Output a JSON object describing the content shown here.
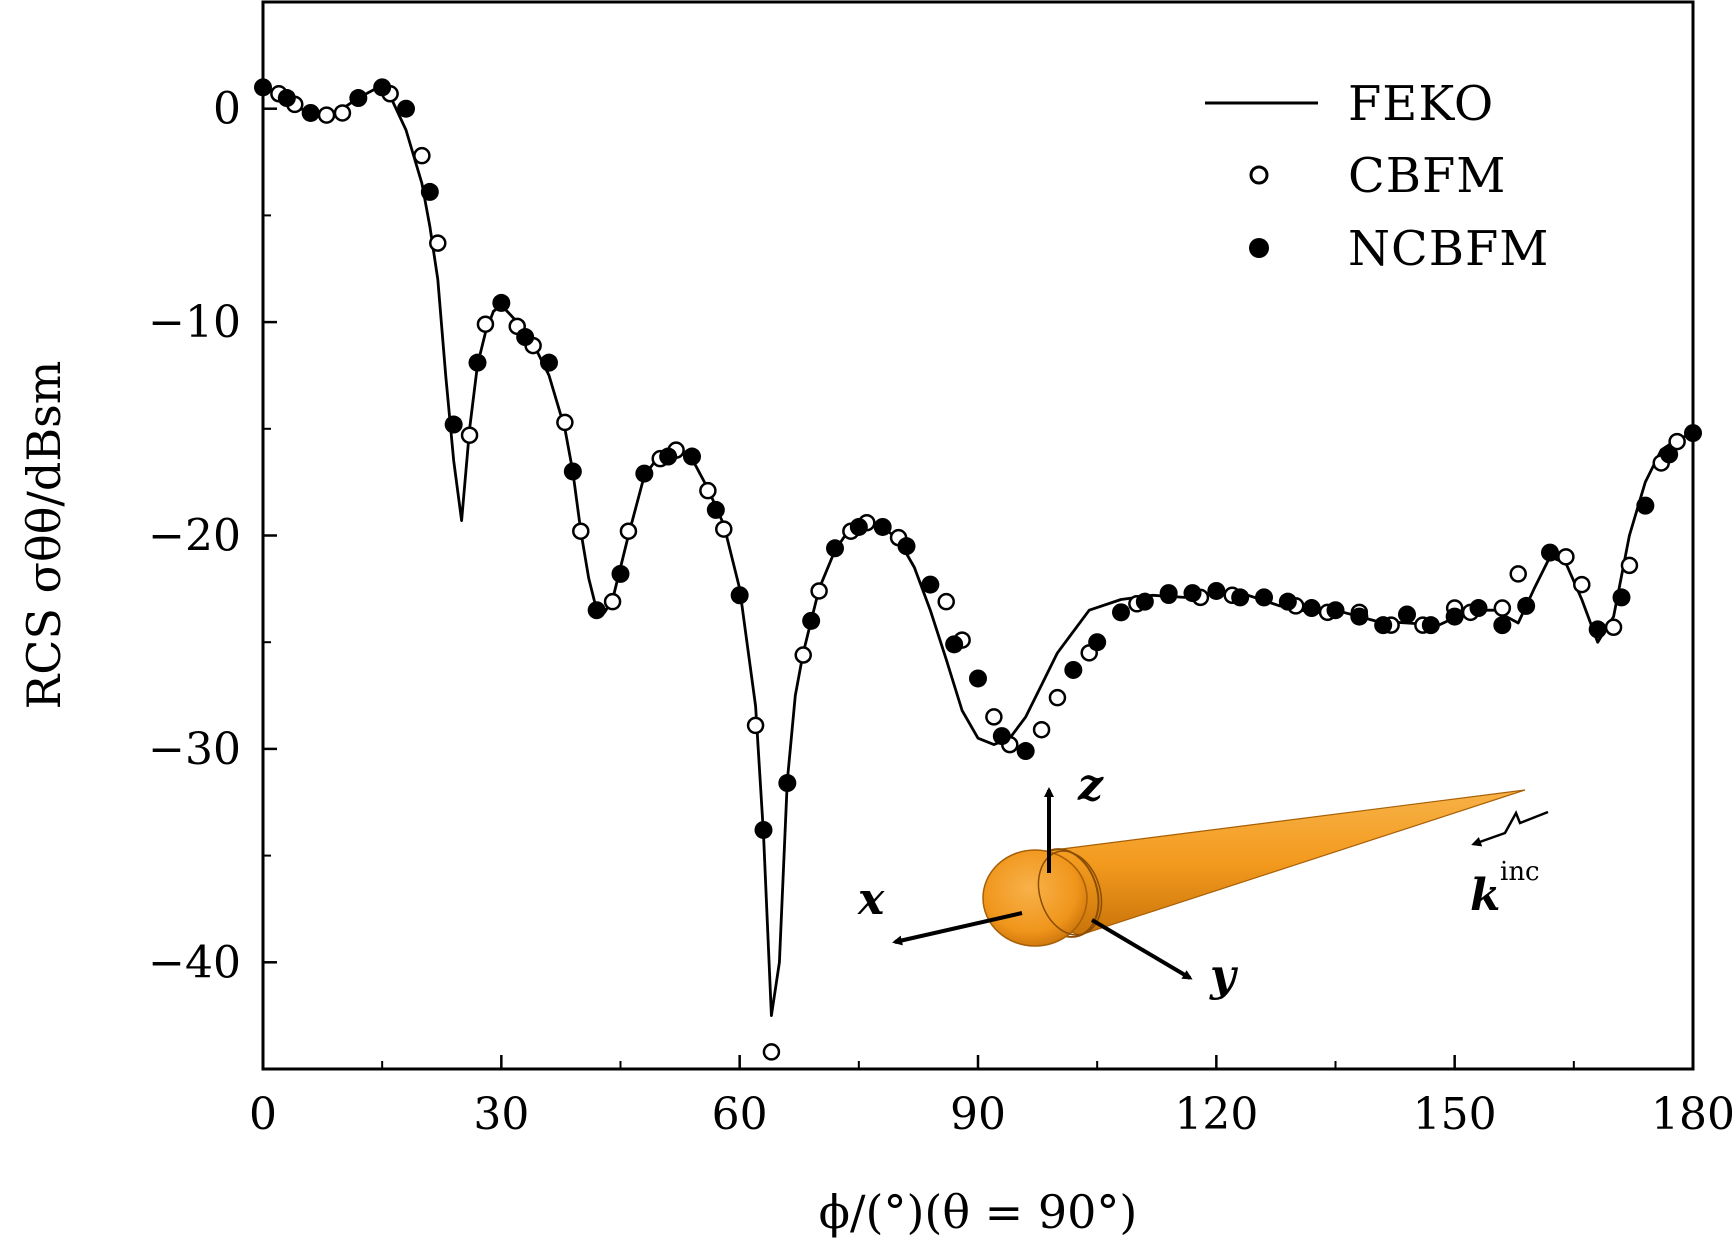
{
  "chart_data": {
    "type": "line",
    "xlabel": "ϕ/(°)(θ = 90°)",
    "ylabel": "RCS σθθ/dBsm",
    "xlim": [
      0,
      180
    ],
    "ylim": [
      -45,
      5
    ],
    "x_ticks": [
      0,
      30,
      60,
      90,
      120,
      150,
      180
    ],
    "x_tick_labels": [
      "0",
      "30",
      "60",
      "90",
      "120",
      "150",
      "180"
    ],
    "y_ticks": [
      0,
      -10,
      -20,
      -30,
      -40
    ],
    "y_tick_labels": [
      "0",
      "−10",
      "−20",
      "−30",
      "−40"
    ],
    "grid": false,
    "legend_position": "top-right",
    "series": [
      {
        "name": "FEKO",
        "style": "line",
        "color": "#000000",
        "x": [
          0,
          2,
          4,
          6,
          8,
          10,
          12,
          14,
          15,
          16,
          18,
          20,
          21,
          22,
          23,
          24,
          25,
          26,
          27,
          28,
          29,
          30,
          32,
          34,
          36,
          38,
          39,
          40,
          41,
          42,
          43,
          44,
          46,
          48,
          50,
          52,
          54,
          56,
          58,
          60,
          62,
          63,
          64,
          65,
          66,
          67,
          68,
          70,
          72,
          74,
          76,
          78,
          80,
          82,
          84,
          86,
          88,
          90,
          92,
          94,
          96,
          98,
          100,
          104,
          108,
          112,
          116,
          120,
          124,
          128,
          132,
          136,
          140,
          144,
          148,
          152,
          155,
          158,
          160,
          162,
          164,
          166,
          168,
          170,
          172,
          174,
          176,
          178,
          180
        ],
        "y": [
          1.0,
          0.7,
          0.2,
          -0.3,
          -0.4,
          0.0,
          0.5,
          0.9,
          0.9,
          0.6,
          -1.0,
          -3.5,
          -5.5,
          -8.0,
          -12.5,
          -16.5,
          -19.3,
          -15.0,
          -12.0,
          -10.5,
          -9.5,
          -9.2,
          -10.0,
          -11.0,
          -12.5,
          -15.0,
          -17.0,
          -19.8,
          -22.0,
          -23.5,
          -23.6,
          -23.0,
          -20.0,
          -17.2,
          -16.2,
          -16.0,
          -16.4,
          -17.8,
          -19.5,
          -22.5,
          -28.0,
          -34.0,
          -42.5,
          -40.0,
          -31.5,
          -27.5,
          -25.5,
          -22.5,
          -20.7,
          -19.6,
          -19.3,
          -19.6,
          -20.2,
          -21.5,
          -23.5,
          -25.8,
          -28.2,
          -29.5,
          -29.8,
          -29.5,
          -28.5,
          -27.0,
          -25.5,
          -23.5,
          -23.0,
          -22.8,
          -22.9,
          -22.7,
          -22.8,
          -23.3,
          -23.6,
          -23.6,
          -24.0,
          -24.1,
          -24.2,
          -23.5,
          -23.5,
          -24.1,
          -22.5,
          -21.0,
          -21.3,
          -23.0,
          -25.0,
          -23.8,
          -20.0,
          -17.5,
          -16.0,
          -15.5,
          -15.2
        ]
      },
      {
        "name": "CBFM",
        "style": "open-circle",
        "x": [
          2,
          4,
          8,
          10,
          16,
          20,
          22,
          26,
          28,
          32,
          34,
          38,
          40,
          44,
          46,
          50,
          52,
          56,
          58,
          62,
          64,
          68,
          70,
          74,
          76,
          80,
          86,
          88,
          92,
          94,
          98,
          100,
          104,
          110,
          114,
          118,
          122,
          126,
          130,
          134,
          138,
          142,
          146,
          150,
          152,
          156,
          158,
          164,
          166,
          170,
          172,
          176,
          178
        ],
        "y": [
          0.7,
          0.2,
          -0.3,
          -0.2,
          0.7,
          -2.2,
          -6.3,
          -15.3,
          -10.1,
          -10.2,
          -11.1,
          -14.7,
          -19.8,
          -23.1,
          -19.8,
          -16.4,
          -16.0,
          -17.9,
          -19.7,
          -28.9,
          -44.2,
          -25.6,
          -22.6,
          -19.8,
          -19.4,
          -20.1,
          -23.1,
          -24.9,
          -28.5,
          -29.8,
          -29.1,
          -27.6,
          -25.5,
          -23.2,
          -22.8,
          -22.9,
          -22.8,
          -22.9,
          -23.3,
          -23.6,
          -23.6,
          -24.2,
          -24.2,
          -23.4,
          -23.6,
          -23.4,
          -21.8,
          -21.0,
          -22.3,
          -24.3,
          -21.4,
          -16.6,
          -15.6
        ]
      },
      {
        "name": "NCBFM",
        "style": "filled-circle",
        "x": [
          0,
          3,
          6,
          12,
          15,
          18,
          21,
          24,
          27,
          30,
          33,
          36,
          39,
          42,
          45,
          48,
          51,
          54,
          57,
          60,
          63,
          66,
          69,
          72,
          75,
          78,
          81,
          84,
          87,
          90,
          93,
          96,
          102,
          105,
          108,
          111,
          114,
          117,
          120,
          123,
          126,
          129,
          132,
          135,
          138,
          141,
          144,
          147,
          150,
          153,
          156,
          159,
          162,
          168,
          171,
          174,
          177,
          180
        ],
        "y": [
          1.0,
          0.5,
          -0.2,
          0.5,
          1.0,
          0.0,
          -3.9,
          -14.8,
          -11.9,
          -9.1,
          -10.7,
          -11.9,
          -17.0,
          -23.5,
          -21.8,
          -17.1,
          -16.3,
          -16.3,
          -18.8,
          -22.8,
          -33.8,
          -31.6,
          -24.0,
          -20.6,
          -19.6,
          -19.6,
          -20.5,
          -22.3,
          -25.1,
          -26.7,
          -29.4,
          -30.1,
          -26.3,
          -25.0,
          -23.6,
          -23.1,
          -22.7,
          -22.7,
          -22.6,
          -22.9,
          -22.9,
          -23.1,
          -23.4,
          -23.5,
          -23.8,
          -24.2,
          -23.7,
          -24.2,
          -23.8,
          -23.4,
          -24.2,
          -23.3,
          -20.8,
          -24.4,
          -22.9,
          -18.6,
          -16.2,
          -15.2
        ]
      }
    ]
  },
  "legend": {
    "items": [
      {
        "label": "FEKO",
        "marker": "line"
      },
      {
        "label": "CBFM",
        "marker": "open-circle"
      },
      {
        "label": "NCBFM",
        "marker": "filled-circle"
      }
    ]
  },
  "inset": {
    "description_icon": "cone-target-icon",
    "axis_x_label": "x",
    "axis_y_label": "y",
    "axis_z_label": "z",
    "wave_label": "k",
    "wave_sup": "inc",
    "body_color": "#f39a1e"
  }
}
